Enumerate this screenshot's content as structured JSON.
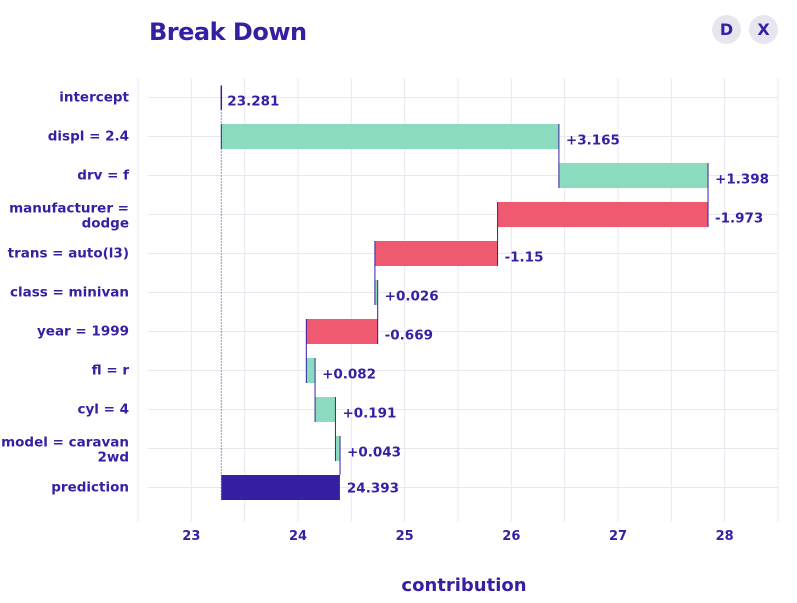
{
  "title": "Break Down",
  "buttons": {
    "d_label": "D",
    "x_label": "X"
  },
  "colors": {
    "positive": "#8bdcbe",
    "negative": "#f05a71",
    "prediction": "#371ea3",
    "text": "#371ea3",
    "grid": "#e8e8ef"
  },
  "chart_data": {
    "type": "waterfall",
    "title": "Break Down",
    "xlabel": "contribution",
    "xlim": [
      22.5,
      28.5
    ],
    "xticks": [
      23,
      24,
      25,
      26,
      27,
      28
    ],
    "rows": [
      {
        "label": [
          "intercept"
        ],
        "value": 23.281,
        "text": "23.281",
        "kind": "intercept"
      },
      {
        "label": [
          "displ = 2.4"
        ],
        "value": 3.165,
        "text": "+3.165",
        "kind": "positive"
      },
      {
        "label": [
          "drv = f"
        ],
        "value": 1.398,
        "text": "+1.398",
        "kind": "positive"
      },
      {
        "label": [
          "manufacturer =",
          "dodge"
        ],
        "value": -1.973,
        "text": "-1.973",
        "kind": "negative"
      },
      {
        "label": [
          "trans = auto(l3)"
        ],
        "value": -1.15,
        "text": "-1.15",
        "kind": "negative"
      },
      {
        "label": [
          "class = minivan"
        ],
        "value": 0.026,
        "text": "+0.026",
        "kind": "positive"
      },
      {
        "label": [
          "year = 1999"
        ],
        "value": -0.669,
        "text": "-0.669",
        "kind": "negative"
      },
      {
        "label": [
          "fl = r"
        ],
        "value": 0.082,
        "text": "+0.082",
        "kind": "positive"
      },
      {
        "label": [
          "cyl = 4"
        ],
        "value": 0.191,
        "text": "+0.191",
        "kind": "positive"
      },
      {
        "label": [
          "model = caravan",
          "2wd"
        ],
        "value": 0.043,
        "text": "+0.043",
        "kind": "positive"
      },
      {
        "label": [
          "prediction"
        ],
        "value": 24.393,
        "text": "24.393",
        "kind": "prediction"
      }
    ]
  }
}
